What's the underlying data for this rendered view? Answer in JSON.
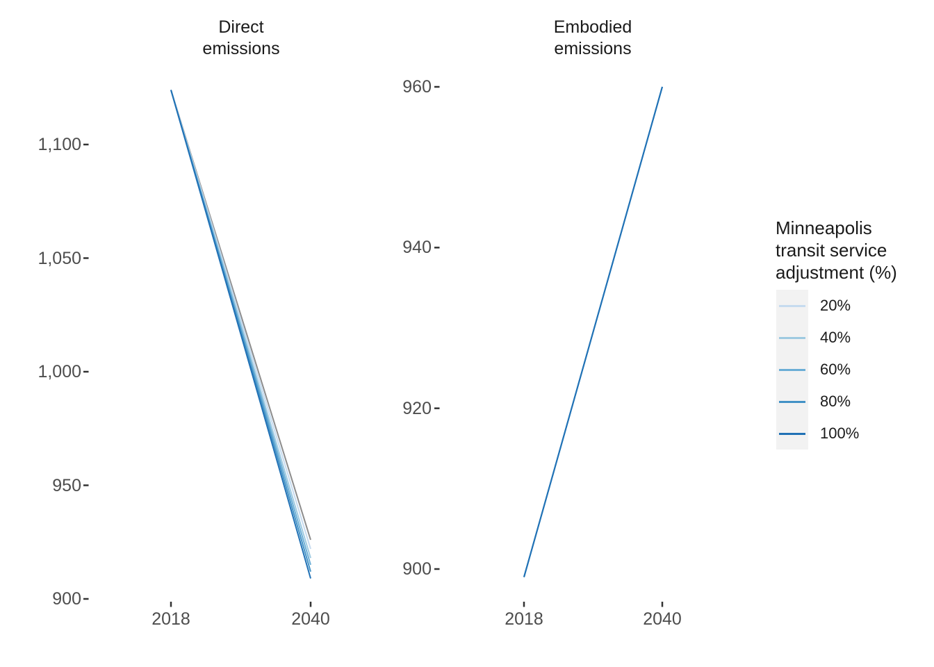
{
  "figure": {
    "background": "#FFFFFF",
    "axis_text_color": "#4D4D4D",
    "title_text_color": "#1A1A1A",
    "tick_mark_color": "#333333",
    "legend_key_background": "#F2F2F2",
    "baseline_line_color": "#8C8C8C"
  },
  "legend": {
    "title": "Minneapolis transit service adjustment (%)",
    "position": "right",
    "entries": [
      {
        "label": "20%",
        "color": "#C6DBEF"
      },
      {
        "label": "40%",
        "color": "#9ECAE1"
      },
      {
        "label": "60%",
        "color": "#6BAED6"
      },
      {
        "label": "80%",
        "color": "#4292C6"
      },
      {
        "label": "100%",
        "color": "#2171B5"
      }
    ]
  },
  "chart_data": [
    {
      "type": "line",
      "panel_title": "Direct emissions",
      "x": [
        2018,
        2040
      ],
      "x_tick_labels": [
        "2018",
        "2040"
      ],
      "xlabel": "",
      "ylabel": "",
      "y_ticks": [
        900,
        950,
        1000,
        1050,
        1100
      ],
      "y_tick_labels": [
        "900",
        "950",
        "1,000",
        "1,050",
        "1,100"
      ],
      "ylim": [
        898,
        1136
      ],
      "grid": false,
      "series": [
        {
          "name": "baseline",
          "in_legend": false,
          "color": "#8C8C8C",
          "values": [
            1124,
            926
          ]
        },
        {
          "name": "20%",
          "in_legend": true,
          "color": "#C6DBEF",
          "values": [
            1124,
            922
          ]
        },
        {
          "name": "40%",
          "in_legend": true,
          "color": "#9ECAE1",
          "values": [
            1124,
            918
          ]
        },
        {
          "name": "60%",
          "in_legend": true,
          "color": "#6BAED6",
          "values": [
            1124,
            915
          ]
        },
        {
          "name": "80%",
          "in_legend": true,
          "color": "#4292C6",
          "values": [
            1124,
            912
          ]
        },
        {
          "name": "100%",
          "in_legend": true,
          "color": "#2171B5",
          "values": [
            1124,
            909
          ]
        }
      ]
    },
    {
      "type": "line",
      "panel_title": "Embodied emissions",
      "x": [
        2018,
        2040
      ],
      "x_tick_labels": [
        "2018",
        "2040"
      ],
      "xlabel": "",
      "ylabel": "",
      "y_ticks": [
        900,
        920,
        940,
        960
      ],
      "y_tick_labels": [
        "900",
        "920",
        "940",
        "960"
      ],
      "ylim": [
        896,
        963
      ],
      "grid": false,
      "series": [
        {
          "name": "20%",
          "in_legend": true,
          "color": "#C6DBEF",
          "values": [
            899,
            960
          ]
        },
        {
          "name": "40%",
          "in_legend": true,
          "color": "#9ECAE1",
          "values": [
            899,
            960
          ]
        },
        {
          "name": "60%",
          "in_legend": true,
          "color": "#6BAED6",
          "values": [
            899,
            960
          ]
        },
        {
          "name": "80%",
          "in_legend": true,
          "color": "#4292C6",
          "values": [
            899,
            960
          ]
        },
        {
          "name": "100%",
          "in_legend": true,
          "color": "#2171B5",
          "values": [
            899,
            960
          ]
        }
      ]
    }
  ]
}
